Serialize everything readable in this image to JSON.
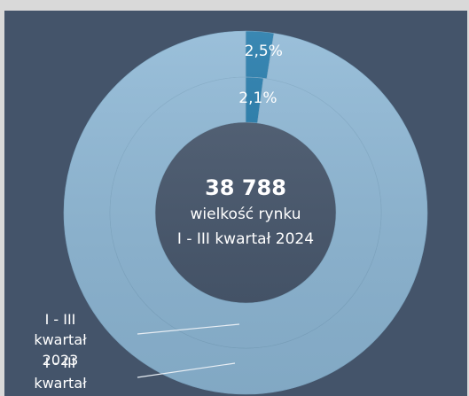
{
  "chart_data": {
    "type": "donut",
    "center_value": "38 788",
    "center_label": "wielkość rynku",
    "center_sublabel": "I - III kwartał 2024",
    "series": [
      {
        "name": "I - III kwartał 2024",
        "values": [
          2.5,
          97.5
        ],
        "value_labels": [
          "2,5%",
          null
        ],
        "colors": [
          "#1f77a8",
          "#8db7d5"
        ]
      },
      {
        "name": "I - III kwartał 2023",
        "values": [
          2.1,
          97.9
        ],
        "value_labels": [
          "2,1%",
          null
        ],
        "colors": [
          "#1f77a8",
          "#8db7d5"
        ]
      }
    ]
  }
}
